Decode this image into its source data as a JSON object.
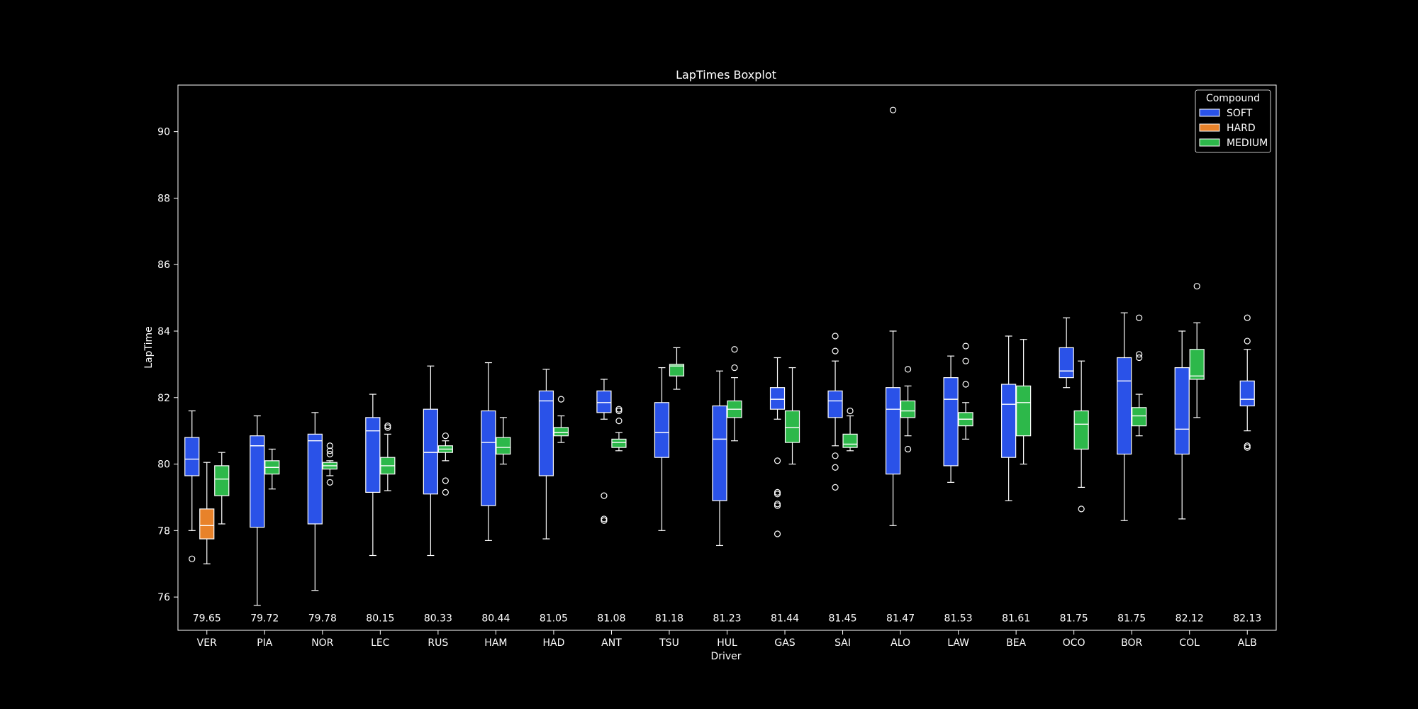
{
  "chart_data": {
    "type": "box",
    "title": "LapTimes Boxplot",
    "xlabel": "Driver",
    "ylabel": "LapTime",
    "ylim": [
      75.0,
      91.4
    ],
    "yticks": [
      76,
      78,
      80,
      82,
      84,
      86,
      88,
      90
    ],
    "grid": false,
    "legend": {
      "title": "Compound",
      "placement": "top-right",
      "entries": [
        {
          "name": "SOFT",
          "color": "#2a52e8"
        },
        {
          "name": "HARD",
          "color": "#e8822a"
        },
        {
          "name": "MEDIUM",
          "color": "#2db84a"
        }
      ]
    },
    "compound_colors": {
      "SOFT": "#2a52e8",
      "HARD": "#e8822a",
      "MEDIUM": "#2db84a"
    },
    "drivers": [
      {
        "name": "VER",
        "median_label": "79.65",
        "boxes": [
          {
            "compound": "SOFT",
            "whislo": 78.0,
            "q1": 79.65,
            "med": 80.15,
            "q3": 80.8,
            "whishi": 81.6,
            "fliers": [
              77.15
            ]
          },
          {
            "compound": "HARD",
            "whislo": 77.0,
            "q1": 77.75,
            "med": 78.15,
            "q3": 78.65,
            "whishi": 80.05,
            "fliers": []
          },
          {
            "compound": "MEDIUM",
            "whislo": 78.2,
            "q1": 79.05,
            "med": 79.55,
            "q3": 79.95,
            "whishi": 80.35,
            "fliers": []
          }
        ]
      },
      {
        "name": "PIA",
        "median_label": "79.72",
        "boxes": [
          {
            "compound": "SOFT",
            "whislo": 75.75,
            "q1": 78.1,
            "med": 80.55,
            "q3": 80.85,
            "whishi": 81.45,
            "fliers": []
          },
          {
            "compound": "MEDIUM",
            "whislo": 79.25,
            "q1": 79.7,
            "med": 79.9,
            "q3": 80.1,
            "whishi": 80.45,
            "fliers": []
          }
        ]
      },
      {
        "name": "NOR",
        "median_label": "79.78",
        "boxes": [
          {
            "compound": "SOFT",
            "whislo": 76.2,
            "q1": 78.2,
            "med": 80.7,
            "q3": 80.9,
            "whishi": 81.55,
            "fliers": []
          },
          {
            "compound": "MEDIUM",
            "whislo": 79.65,
            "q1": 79.85,
            "med": 79.95,
            "q3": 80.05,
            "whishi": 80.1,
            "fliers": [
              80.3,
              80.4,
              80.55,
              79.45
            ]
          }
        ]
      },
      {
        "name": "LEC",
        "median_label": "80.15",
        "boxes": [
          {
            "compound": "SOFT",
            "whislo": 77.25,
            "q1": 79.15,
            "med": 81.0,
            "q3": 81.4,
            "whishi": 82.1,
            "fliers": []
          },
          {
            "compound": "MEDIUM",
            "whislo": 79.2,
            "q1": 79.7,
            "med": 79.95,
            "q3": 80.2,
            "whishi": 80.9,
            "fliers": [
              81.1,
              81.15
            ]
          }
        ]
      },
      {
        "name": "RUS",
        "median_label": "80.33",
        "boxes": [
          {
            "compound": "SOFT",
            "whislo": 77.25,
            "q1": 79.1,
            "med": 80.35,
            "q3": 81.65,
            "whishi": 82.95,
            "fliers": []
          },
          {
            "compound": "MEDIUM",
            "whislo": 80.1,
            "q1": 80.35,
            "med": 80.45,
            "q3": 80.55,
            "whishi": 80.7,
            "fliers": [
              80.85,
              79.5,
              79.15
            ]
          }
        ]
      },
      {
        "name": "HAM",
        "median_label": "80.44",
        "boxes": [
          {
            "compound": "SOFT",
            "whislo": 77.7,
            "q1": 78.75,
            "med": 80.65,
            "q3": 81.6,
            "whishi": 83.05,
            "fliers": []
          },
          {
            "compound": "MEDIUM",
            "whislo": 80.0,
            "q1": 80.3,
            "med": 80.5,
            "q3": 80.8,
            "whishi": 81.4,
            "fliers": []
          }
        ]
      },
      {
        "name": "HAD",
        "median_label": "81.05",
        "boxes": [
          {
            "compound": "SOFT",
            "whislo": 77.75,
            "q1": 79.65,
            "med": 81.9,
            "q3": 82.2,
            "whishi": 82.85,
            "fliers": []
          },
          {
            "compound": "MEDIUM",
            "whislo": 80.65,
            "q1": 80.85,
            "med": 80.95,
            "q3": 81.1,
            "whishi": 81.45,
            "fliers": [
              81.95
            ]
          }
        ]
      },
      {
        "name": "ANT",
        "median_label": "81.08",
        "boxes": [
          {
            "compound": "SOFT",
            "whislo": 81.35,
            "q1": 81.55,
            "med": 81.85,
            "q3": 82.2,
            "whishi": 82.55,
            "fliers": [
              79.05,
              78.35,
              78.3
            ]
          },
          {
            "compound": "MEDIUM",
            "whislo": 80.4,
            "q1": 80.5,
            "med": 80.65,
            "q3": 80.75,
            "whishi": 80.95,
            "fliers": [
              81.3,
              81.6,
              81.65
            ]
          }
        ]
      },
      {
        "name": "TSU",
        "median_label": "81.18",
        "boxes": [
          {
            "compound": "SOFT",
            "whislo": 78.0,
            "q1": 80.2,
            "med": 80.95,
            "q3": 81.85,
            "whishi": 82.9,
            "fliers": []
          },
          {
            "compound": "MEDIUM",
            "whislo": 82.25,
            "q1": 82.65,
            "med": 82.95,
            "q3": 83.0,
            "whishi": 83.5,
            "fliers": []
          }
        ]
      },
      {
        "name": "HUL",
        "median_label": "81.23",
        "boxes": [
          {
            "compound": "SOFT",
            "whislo": 77.55,
            "q1": 78.9,
            "med": 80.75,
            "q3": 81.75,
            "whishi": 82.8,
            "fliers": []
          },
          {
            "compound": "MEDIUM",
            "whislo": 80.7,
            "q1": 81.4,
            "med": 81.65,
            "q3": 81.9,
            "whishi": 82.6,
            "fliers": [
              82.9,
              83.45
            ]
          }
        ]
      },
      {
        "name": "GAS",
        "median_label": "81.44",
        "boxes": [
          {
            "compound": "SOFT",
            "whislo": 81.35,
            "q1": 81.65,
            "med": 81.95,
            "q3": 82.3,
            "whishi": 83.2,
            "fliers": [
              80.1,
              79.15,
              79.1,
              78.8,
              78.75,
              77.9
            ]
          },
          {
            "compound": "MEDIUM",
            "whislo": 80.0,
            "q1": 80.65,
            "med": 81.1,
            "q3": 81.6,
            "whishi": 82.9,
            "fliers": []
          }
        ]
      },
      {
        "name": "SAI",
        "median_label": "81.45",
        "boxes": [
          {
            "compound": "SOFT",
            "whislo": 80.55,
            "q1": 81.4,
            "med": 81.9,
            "q3": 82.2,
            "whishi": 83.1,
            "fliers": [
              83.4,
              83.85,
              80.25,
              79.9,
              79.3
            ]
          },
          {
            "compound": "MEDIUM",
            "whislo": 80.4,
            "q1": 80.5,
            "med": 80.6,
            "q3": 80.9,
            "whishi": 81.45,
            "fliers": [
              81.6
            ]
          }
        ]
      },
      {
        "name": "ALO",
        "median_label": "81.47",
        "boxes": [
          {
            "compound": "SOFT",
            "whislo": 78.15,
            "q1": 79.7,
            "med": 81.65,
            "q3": 82.3,
            "whishi": 84.0,
            "fliers": [
              90.65
            ]
          },
          {
            "compound": "MEDIUM",
            "whislo": 80.85,
            "q1": 81.4,
            "med": 81.6,
            "q3": 81.9,
            "whishi": 82.35,
            "fliers": [
              82.85,
              80.45
            ]
          }
        ]
      },
      {
        "name": "LAW",
        "median_label": "81.53",
        "boxes": [
          {
            "compound": "SOFT",
            "whislo": 79.45,
            "q1": 79.95,
            "med": 81.95,
            "q3": 82.6,
            "whishi": 83.25,
            "fliers": []
          },
          {
            "compound": "MEDIUM",
            "whislo": 80.75,
            "q1": 81.15,
            "med": 81.35,
            "q3": 81.55,
            "whishi": 81.85,
            "fliers": [
              82.4,
              83.1,
              83.55
            ]
          }
        ]
      },
      {
        "name": "BEA",
        "median_label": "81.61",
        "boxes": [
          {
            "compound": "SOFT",
            "whislo": 78.9,
            "q1": 80.2,
            "med": 81.8,
            "q3": 82.4,
            "whishi": 83.85,
            "fliers": []
          },
          {
            "compound": "MEDIUM",
            "whislo": 80.0,
            "q1": 80.85,
            "med": 81.85,
            "q3": 82.35,
            "whishi": 83.75,
            "fliers": []
          }
        ]
      },
      {
        "name": "OCO",
        "median_label": "81.75",
        "boxes": [
          {
            "compound": "SOFT",
            "whislo": 82.3,
            "q1": 82.6,
            "med": 82.8,
            "q3": 83.5,
            "whishi": 84.4,
            "fliers": []
          },
          {
            "compound": "MEDIUM",
            "whislo": 79.3,
            "q1": 80.45,
            "med": 81.2,
            "q3": 81.6,
            "whishi": 83.1,
            "fliers": [
              78.65
            ]
          }
        ]
      },
      {
        "name": "BOR",
        "median_label": "81.75",
        "boxes": [
          {
            "compound": "SOFT",
            "whislo": 78.3,
            "q1": 80.3,
            "med": 82.5,
            "q3": 83.2,
            "whishi": 84.55,
            "fliers": []
          },
          {
            "compound": "MEDIUM",
            "whislo": 80.85,
            "q1": 81.15,
            "med": 81.45,
            "q3": 81.7,
            "whishi": 82.1,
            "fliers": [
              83.2,
              83.3,
              84.4
            ]
          }
        ]
      },
      {
        "name": "COL",
        "median_label": "82.12",
        "boxes": [
          {
            "compound": "SOFT",
            "whislo": 78.35,
            "q1": 80.3,
            "med": 81.05,
            "q3": 82.9,
            "whishi": 84.0,
            "fliers": []
          },
          {
            "compound": "MEDIUM",
            "whislo": 81.4,
            "q1": 82.55,
            "med": 82.65,
            "q3": 83.45,
            "whishi": 84.25,
            "fliers": [
              85.35
            ]
          }
        ]
      },
      {
        "name": "ALB",
        "median_label": "82.13",
        "boxes": [
          {
            "compound": "SOFT",
            "whislo": 81.0,
            "q1": 81.75,
            "med": 81.95,
            "q3": 82.5,
            "whishi": 83.45,
            "fliers": [
              83.7,
              84.4,
              80.5,
              80.55
            ]
          }
        ]
      }
    ]
  }
}
